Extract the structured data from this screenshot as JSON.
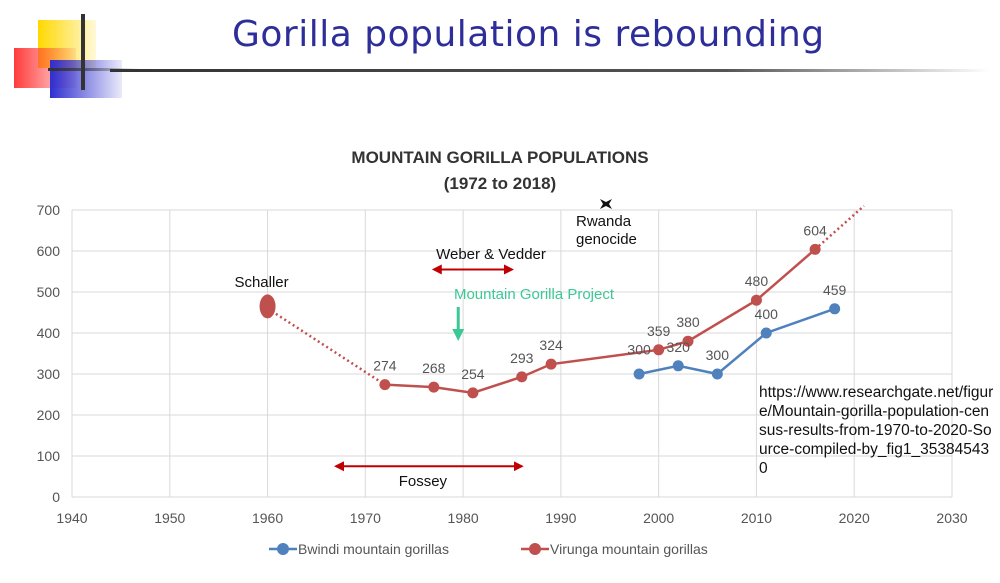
{
  "slide": {
    "title": "Gorilla population is rebounding"
  },
  "chart_data": {
    "type": "line",
    "title": "MOUNTAIN GORILLA POPULATIONS",
    "subtitle": "(1972 to 2018)",
    "xlim": [
      1940,
      2030
    ],
    "ylim": [
      0,
      700
    ],
    "xticks": [
      1940,
      1950,
      1960,
      1970,
      1980,
      1990,
      2000,
      2010,
      2020,
      2030
    ],
    "yticks": [
      0,
      100,
      200,
      300,
      400,
      500,
      600,
      700
    ],
    "grid": true,
    "legend_position": "bottom",
    "series": [
      {
        "name": "Bwindi mountain gorillas",
        "color": "#4f81bd",
        "x": [
          1998,
          2002,
          2006,
          2011,
          2018
        ],
        "y": [
          300,
          320,
          300,
          400,
          459
        ],
        "labels": [
          "",
          "320",
          "300",
          "400",
          "459"
        ]
      },
      {
        "name": "Virunga mountain gorillas",
        "color": "#c0504d",
        "x": [
          1972,
          1977,
          1981,
          1986,
          1989,
          2000,
          2003,
          2010,
          2016
        ],
        "y": [
          274,
          268,
          254,
          293,
          324,
          359,
          380,
          480,
          604
        ],
        "labels": [
          "274",
          "268",
          "254",
          "293",
          "324",
          "359",
          "380",
          "480",
          "604"
        ]
      }
    ],
    "extra_labels": [
      {
        "x": 1998,
        "y": 360,
        "text": "300"
      }
    ],
    "schaller": {
      "x": 1960,
      "y": 460,
      "label": "Schaller"
    },
    "dotted_lines": [
      {
        "from": [
          1960,
          460
        ],
        "to": [
          1972,
          274
        ]
      },
      {
        "from": [
          2016,
          604
        ],
        "to": [
          2021,
          710
        ]
      }
    ],
    "annotations": [
      {
        "id": "weber-vedder",
        "text": "Weber & Vedder",
        "x_from": 1977,
        "x_to": 1985,
        "y": 555
      },
      {
        "id": "fossey",
        "text": "Fossey",
        "x_from": 1967,
        "x_to": 1986,
        "y": 75
      },
      {
        "id": "mgp",
        "text": "Mountain Gorilla Project",
        "color": "#3cc896",
        "arrow_x": 1979.5
      },
      {
        "id": "rwanda",
        "text_lines": [
          "Rwanda",
          "genocide"
        ],
        "x": 1994
      }
    ]
  },
  "source_note": "https://www.researchgate.net/figure/Mountain-gorilla-population-census-results-from-1970-to-2020-Source-compiled-by_fig1_353845430"
}
